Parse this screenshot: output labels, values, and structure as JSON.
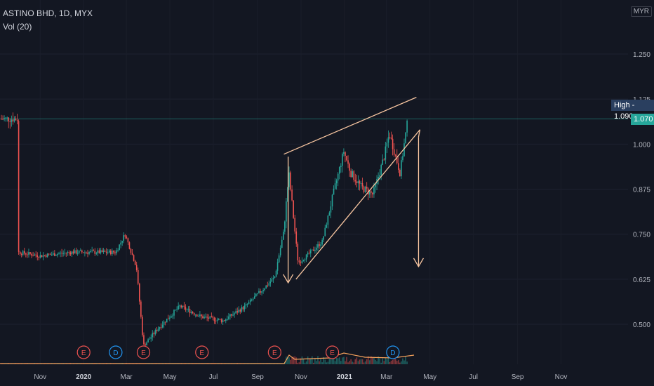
{
  "header": {
    "symbol_line": "ASTINO BHD, 1D, MYX",
    "indicator_line": "Vol (20)"
  },
  "currency_label": "MYR",
  "high_label": "High",
  "high_value": "1.090",
  "last_price": "1.070",
  "chart_data": {
    "type": "candlestick",
    "y_ticks": [
      "1.250",
      "1.125",
      "1.000",
      "0.875",
      "0.750",
      "0.625",
      "0.500"
    ],
    "x_ticks": [
      "Nov",
      "2020",
      "Mar",
      "May",
      "Jul",
      "Sep",
      "Nov",
      "2021",
      "Mar",
      "May",
      "Jul",
      "Sep",
      "Nov"
    ],
    "ylim": [
      0.39,
      1.33
    ],
    "price_path": [
      [
        "2019-10-01",
        0.7
      ],
      [
        "2019-11-01",
        0.69
      ],
      [
        "2019-12-15",
        0.7
      ],
      [
        "2020-01-15",
        0.7
      ],
      [
        "2020-02-15",
        0.7
      ],
      [
        "2020-02-28",
        0.75
      ],
      [
        "2020-03-15",
        0.66
      ],
      [
        "2020-03-25",
        0.44
      ],
      [
        "2020-04-15",
        0.49
      ],
      [
        "2020-05-15",
        0.55
      ],
      [
        "2020-06-15",
        0.52
      ],
      [
        "2020-07-15",
        0.51
      ],
      [
        "2020-08-15",
        0.55
      ],
      [
        "2020-09-10",
        0.6
      ],
      [
        "2020-09-25",
        0.63
      ],
      [
        "2020-10-08",
        0.76
      ],
      [
        "2020-10-15",
        0.92
      ],
      [
        "2020-10-28",
        0.67
      ],
      [
        "2020-11-15",
        0.7
      ],
      [
        "2020-12-01",
        0.73
      ],
      [
        "2020-12-15",
        0.85
      ],
      [
        "2020-12-31",
        0.98
      ],
      [
        "2021-01-10",
        0.92
      ],
      [
        "2021-01-25",
        0.88
      ],
      [
        "2021-02-10",
        0.86
      ],
      [
        "2021-02-25",
        0.96
      ],
      [
        "2021-03-05",
        1.03
      ],
      [
        "2021-03-20",
        0.92
      ],
      [
        "2021-03-31",
        1.07
      ]
    ],
    "drawings": [
      {
        "type": "upper-trendline",
        "from": [
          "2020-10-08",
          0.972
        ],
        "to": [
          "2021-04-12",
          1.13
        ]
      },
      {
        "type": "lower-trendline",
        "from": [
          "2020-10-25",
          0.625
        ],
        "to": [
          "2021-04-17",
          1.04
        ]
      },
      {
        "type": "down-arrow",
        "from": [
          "2020-10-14",
          0.965
        ],
        "to": [
          "2020-10-14",
          0.615
        ]
      },
      {
        "type": "down-arrow",
        "from": [
          "2021-04-15",
          1.02
        ],
        "to": [
          "2021-04-15",
          0.66
        ]
      }
    ],
    "event_markers": [
      {
        "label": "E",
        "date": "2020-01-01"
      },
      {
        "label": "D",
        "date": "2020-02-15"
      },
      {
        "label": "E",
        "date": "2020-03-25"
      },
      {
        "label": "E",
        "date": "2020-06-15"
      },
      {
        "label": "E",
        "date": "2020-09-25"
      },
      {
        "label": "E",
        "date": "2020-12-15"
      },
      {
        "label": "D",
        "date": "2021-03-10"
      }
    ],
    "colors": {
      "up": "#26a69a",
      "down": "#ef5350",
      "drawing": "#f7c5a0",
      "price_line": "#26a69a",
      "high_tag": "#2a3f5f"
    }
  }
}
